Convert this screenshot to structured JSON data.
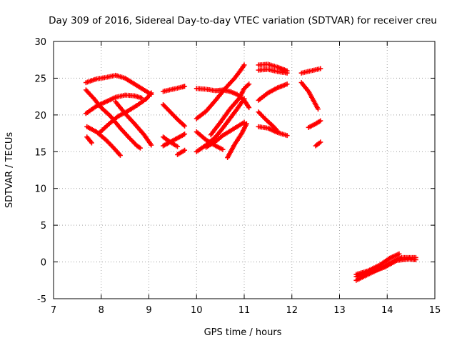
{
  "chart_data": {
    "type": "scatter",
    "title": "Day 309 of 2016, Sidereal Day-to-day VTEC variation (SDTVAR) for receiver creu",
    "xlabel": "GPS time / hours",
    "ylabel": "SDTVAR / TECUs",
    "xlim": [
      7,
      15
    ],
    "ylim": [
      -5,
      30
    ],
    "x_ticks": [
      "7",
      "8",
      "9",
      "10",
      "11",
      "12",
      "13",
      "14",
      "15"
    ],
    "y_ticks": [
      "-5",
      "0",
      "5",
      "10",
      "15",
      "20",
      "25",
      "30"
    ],
    "grid": true,
    "marker": "plus",
    "color": "#ff0000",
    "series": [
      {
        "name": "arc-1",
        "segments": [
          [
            [
              7.68,
              24.4
            ],
            [
              7.9,
              24.9
            ],
            [
              8.1,
              25.1
            ],
            [
              8.3,
              25.4
            ],
            [
              8.5,
              25.0
            ],
            [
              8.75,
              24.0
            ],
            [
              9.05,
              22.8
            ]
          ]
        ]
      },
      {
        "name": "arc-2",
        "segments": [
          [
            [
              7.68,
              20.2
            ],
            [
              7.9,
              21.2
            ],
            [
              8.1,
              21.8
            ],
            [
              8.3,
              22.4
            ],
            [
              8.5,
              22.7
            ],
            [
              8.7,
              22.6
            ],
            [
              8.85,
              22.3
            ]
          ]
        ]
      },
      {
        "name": "arc-3",
        "segments": [
          [
            [
              7.68,
              23.4
            ],
            [
              7.85,
              22.2
            ],
            [
              8.0,
              21.0
            ],
            [
              8.2,
              19.8
            ],
            [
              8.4,
              18.2
            ],
            [
              8.6,
              16.8
            ],
            [
              8.75,
              15.8
            ],
            [
              8.82,
              15.5
            ]
          ]
        ]
      },
      {
        "name": "arc-4",
        "segments": [
          [
            [
              7.7,
              18.4
            ],
            [
              7.9,
              17.7
            ],
            [
              8.1,
              16.6
            ],
            [
              8.25,
              15.6
            ],
            [
              8.4,
              14.5
            ]
          ]
        ]
      },
      {
        "name": "arc-5",
        "segments": [
          [
            [
              7.7,
              17.0
            ],
            [
              7.8,
              16.2
            ]
          ]
        ]
      },
      {
        "name": "arc-6",
        "segments": [
          [
            [
              7.95,
              17.5
            ],
            [
              8.15,
              18.7
            ],
            [
              8.35,
              19.8
            ],
            [
              8.55,
              20.5
            ],
            [
              8.75,
              21.3
            ],
            [
              8.95,
              22.2
            ],
            [
              9.05,
              23.0
            ]
          ]
        ]
      },
      {
        "name": "arc-7",
        "segments": [
          [
            [
              8.3,
              21.8
            ],
            [
              8.5,
              20.2
            ],
            [
              8.7,
              18.8
            ],
            [
              8.9,
              17.3
            ],
            [
              9.05,
              15.9
            ]
          ]
        ]
      },
      {
        "name": "arc-8",
        "segments": [
          [
            [
              9.3,
              23.2
            ],
            [
              9.5,
              23.5
            ],
            [
              9.7,
              23.8
            ],
            [
              9.75,
              23.9
            ]
          ]
        ]
      },
      {
        "name": "arc-9",
        "segments": [
          [
            [
              9.3,
              21.4
            ],
            [
              9.45,
              20.4
            ],
            [
              9.6,
              19.4
            ],
            [
              9.75,
              18.5
            ]
          ]
        ]
      },
      {
        "name": "arc-10",
        "segments": [
          [
            [
              9.3,
              17.0
            ],
            [
              9.45,
              16.3
            ],
            [
              9.6,
              15.7
            ]
          ]
        ]
      },
      {
        "name": "arc-11",
        "segments": [
          [
            [
              9.3,
              15.8
            ],
            [
              9.5,
              16.5
            ],
            [
              9.7,
              17.2
            ],
            [
              9.75,
              17.4
            ]
          ]
        ]
      },
      {
        "name": "arc-12",
        "segments": [
          [
            [
              9.6,
              14.6
            ],
            [
              9.75,
              15.2
            ]
          ]
        ]
      },
      {
        "name": "arc-13",
        "segments": [
          [
            [
              10.0,
              23.6
            ],
            [
              10.2,
              23.5
            ],
            [
              10.4,
              23.3
            ],
            [
              10.55,
              23.4
            ],
            [
              10.7,
              23.2
            ],
            [
              10.85,
              22.8
            ],
            [
              11.0,
              22.0
            ],
            [
              11.1,
              21.0
            ]
          ]
        ]
      },
      {
        "name": "arc-14",
        "segments": [
          [
            [
              10.0,
              19.5
            ],
            [
              10.2,
              20.5
            ],
            [
              10.4,
              22.0
            ],
            [
              10.6,
              23.6
            ],
            [
              10.8,
              25.0
            ],
            [
              10.95,
              26.3
            ],
            [
              11.0,
              26.8
            ]
          ]
        ]
      },
      {
        "name": "arc-15",
        "segments": [
          [
            [
              10.3,
              17.3
            ],
            [
              10.5,
              19.0
            ],
            [
              10.7,
              20.8
            ],
            [
              10.9,
              22.3
            ],
            [
              11.0,
              23.6
            ],
            [
              11.1,
              24.2
            ]
          ]
        ]
      },
      {
        "name": "arc-16",
        "segments": [
          [
            [
              10.0,
              17.7
            ],
            [
              10.2,
              16.6
            ],
            [
              10.4,
              15.8
            ],
            [
              10.55,
              15.3
            ]
          ]
        ]
      },
      {
        "name": "arc-17",
        "segments": [
          [
            [
              10.2,
              15.6
            ],
            [
              10.4,
              16.4
            ],
            [
              10.55,
              17.2
            ],
            [
              10.7,
              17.8
            ],
            [
              10.85,
              18.4
            ],
            [
              11.0,
              19.0
            ]
          ]
        ]
      },
      {
        "name": "arc-18",
        "segments": [
          [
            [
              10.0,
              15.0
            ],
            [
              10.2,
              15.9
            ],
            [
              10.4,
              17.0
            ],
            [
              10.55,
              18.2
            ],
            [
              10.7,
              19.5
            ],
            [
              10.85,
              20.8
            ],
            [
              11.0,
              22.2
            ]
          ]
        ]
      },
      {
        "name": "arc-19",
        "segments": [
          [
            [
              10.65,
              14.2
            ],
            [
              10.8,
              16.0
            ],
            [
              10.95,
              17.5
            ],
            [
              11.05,
              18.8
            ]
          ]
        ]
      },
      {
        "name": "arc-20",
        "segments": [
          [
            [
              11.3,
              26.8
            ],
            [
              11.5,
              26.9
            ],
            [
              11.7,
              26.5
            ],
            [
              11.9,
              26.0
            ]
          ]
        ]
      },
      {
        "name": "arc-21",
        "segments": [
          [
            [
              11.3,
              26.1
            ],
            [
              11.5,
              26.2
            ],
            [
              11.7,
              25.9
            ],
            [
              11.9,
              25.7
            ]
          ]
        ]
      },
      {
        "name": "arc-22",
        "segments": [
          [
            [
              11.3,
              22.0
            ],
            [
              11.5,
              23.0
            ],
            [
              11.7,
              23.7
            ],
            [
              11.9,
              24.2
            ]
          ]
        ]
      },
      {
        "name": "arc-23",
        "segments": [
          [
            [
              11.3,
              20.4
            ],
            [
              11.45,
              19.4
            ],
            [
              11.6,
              18.5
            ],
            [
              11.7,
              17.8
            ]
          ]
        ]
      },
      {
        "name": "arc-24",
        "segments": [
          [
            [
              11.3,
              18.4
            ],
            [
              11.5,
              18.2
            ],
            [
              11.7,
              17.6
            ],
            [
              11.9,
              17.2
            ]
          ]
        ]
      },
      {
        "name": "arc-25",
        "segments": [
          [
            [
              12.2,
              25.7
            ],
            [
              12.4,
              26.0
            ],
            [
              12.6,
              26.3
            ]
          ]
        ]
      },
      {
        "name": "arc-26",
        "segments": [
          [
            [
              12.2,
              24.4
            ],
            [
              12.35,
              23.2
            ],
            [
              12.45,
              22.0
            ],
            [
              12.55,
              20.8
            ]
          ]
        ]
      },
      {
        "name": "arc-27",
        "segments": [
          [
            [
              12.35,
              18.3
            ],
            [
              12.5,
              18.8
            ],
            [
              12.6,
              19.2
            ]
          ]
        ]
      },
      {
        "name": "arc-28",
        "segments": [
          [
            [
              12.5,
              15.8
            ],
            [
              12.6,
              16.3
            ]
          ]
        ]
      },
      {
        "name": "arc-29",
        "segments": [
          [
            [
              13.35,
              -2.5
            ],
            [
              13.6,
              -1.7
            ],
            [
              13.85,
              -0.9
            ],
            [
              14.1,
              0.0
            ],
            [
              14.3,
              0.6
            ],
            [
              14.6,
              0.6
            ]
          ]
        ]
      },
      {
        "name": "arc-30",
        "segments": [
          [
            [
              13.35,
              -1.7
            ],
            [
              13.6,
              -1.2
            ],
            [
              13.85,
              -0.4
            ],
            [
              14.05,
              0.5
            ],
            [
              14.25,
              1.1
            ]
          ]
        ]
      },
      {
        "name": "arc-31",
        "segments": [
          [
            [
              13.35,
              -2.0
            ],
            [
              13.65,
              -1.4
            ],
            [
              13.95,
              -0.7
            ],
            [
              14.2,
              0.2
            ],
            [
              14.45,
              0.4
            ],
            [
              14.6,
              0.3
            ]
          ]
        ]
      }
    ]
  }
}
